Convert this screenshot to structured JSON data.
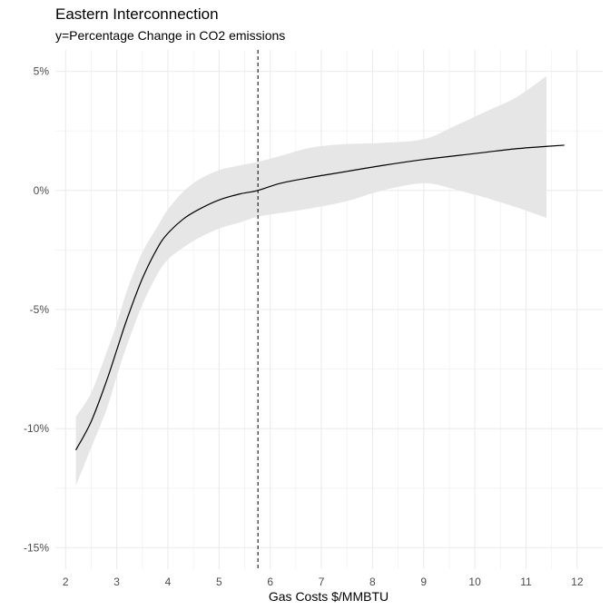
{
  "chart_data": {
    "type": "line",
    "title": "Eastern Interconnection",
    "subtitle": "y=Percentage Change in CO2 emissions",
    "xlabel": "Gas Costs $/MMBTU",
    "ylabel": "",
    "xlim": [
      1.8,
      12.5
    ],
    "ylim": [
      -15.9,
      5.9
    ],
    "x_ticks": [
      2,
      3,
      4,
      5,
      6,
      7,
      8,
      9,
      10,
      11,
      12
    ],
    "x_tick_labels": [
      "2",
      "3",
      "4",
      "5",
      "6",
      "7",
      "8",
      "9",
      "10",
      "11",
      "12"
    ],
    "y_ticks": [
      -15,
      -10,
      -5,
      0,
      5
    ],
    "y_tick_labels": [
      "-15%",
      "-10%",
      "-5%",
      "0%",
      "5%"
    ],
    "grid": true,
    "vline_x": 5.76,
    "vline_style": "dashed",
    "series": [
      {
        "line_color": "#000000",
        "band_color": "#e6e6e6",
        "x": [
          2.2,
          2.5,
          2.8,
          3.0,
          3.2,
          3.5,
          3.8,
          4.0,
          4.3,
          4.6,
          5.0,
          5.4,
          5.76,
          6.2,
          6.8,
          7.5,
          8.2,
          9.0,
          9.6,
          10.2,
          10.8,
          11.4,
          11.75
        ],
        "y": [
          -10.9,
          -9.7,
          -8.0,
          -6.7,
          -5.4,
          -3.7,
          -2.4,
          -1.8,
          -1.2,
          -0.8,
          -0.4,
          -0.15,
          0.0,
          0.3,
          0.55,
          0.8,
          1.05,
          1.3,
          1.45,
          1.6,
          1.75,
          1.85,
          1.9
        ],
        "lower": [
          -12.4,
          -10.8,
          -9.2,
          -7.8,
          -6.5,
          -4.8,
          -3.5,
          -2.9,
          -2.4,
          -2.0,
          -1.6,
          -1.35,
          -1.1,
          -0.95,
          -0.75,
          -0.45,
          0.0,
          0.3,
          0.05,
          -0.3,
          -0.7,
          -1.15,
          null
        ],
        "upper": [
          -9.5,
          -8.5,
          -6.8,
          -5.6,
          -4.2,
          -2.6,
          -1.5,
          -0.8,
          -0.05,
          0.45,
          0.85,
          1.05,
          1.2,
          1.45,
          1.8,
          1.95,
          2.0,
          2.15,
          2.7,
          3.3,
          3.9,
          4.8,
          null
        ]
      }
    ]
  }
}
